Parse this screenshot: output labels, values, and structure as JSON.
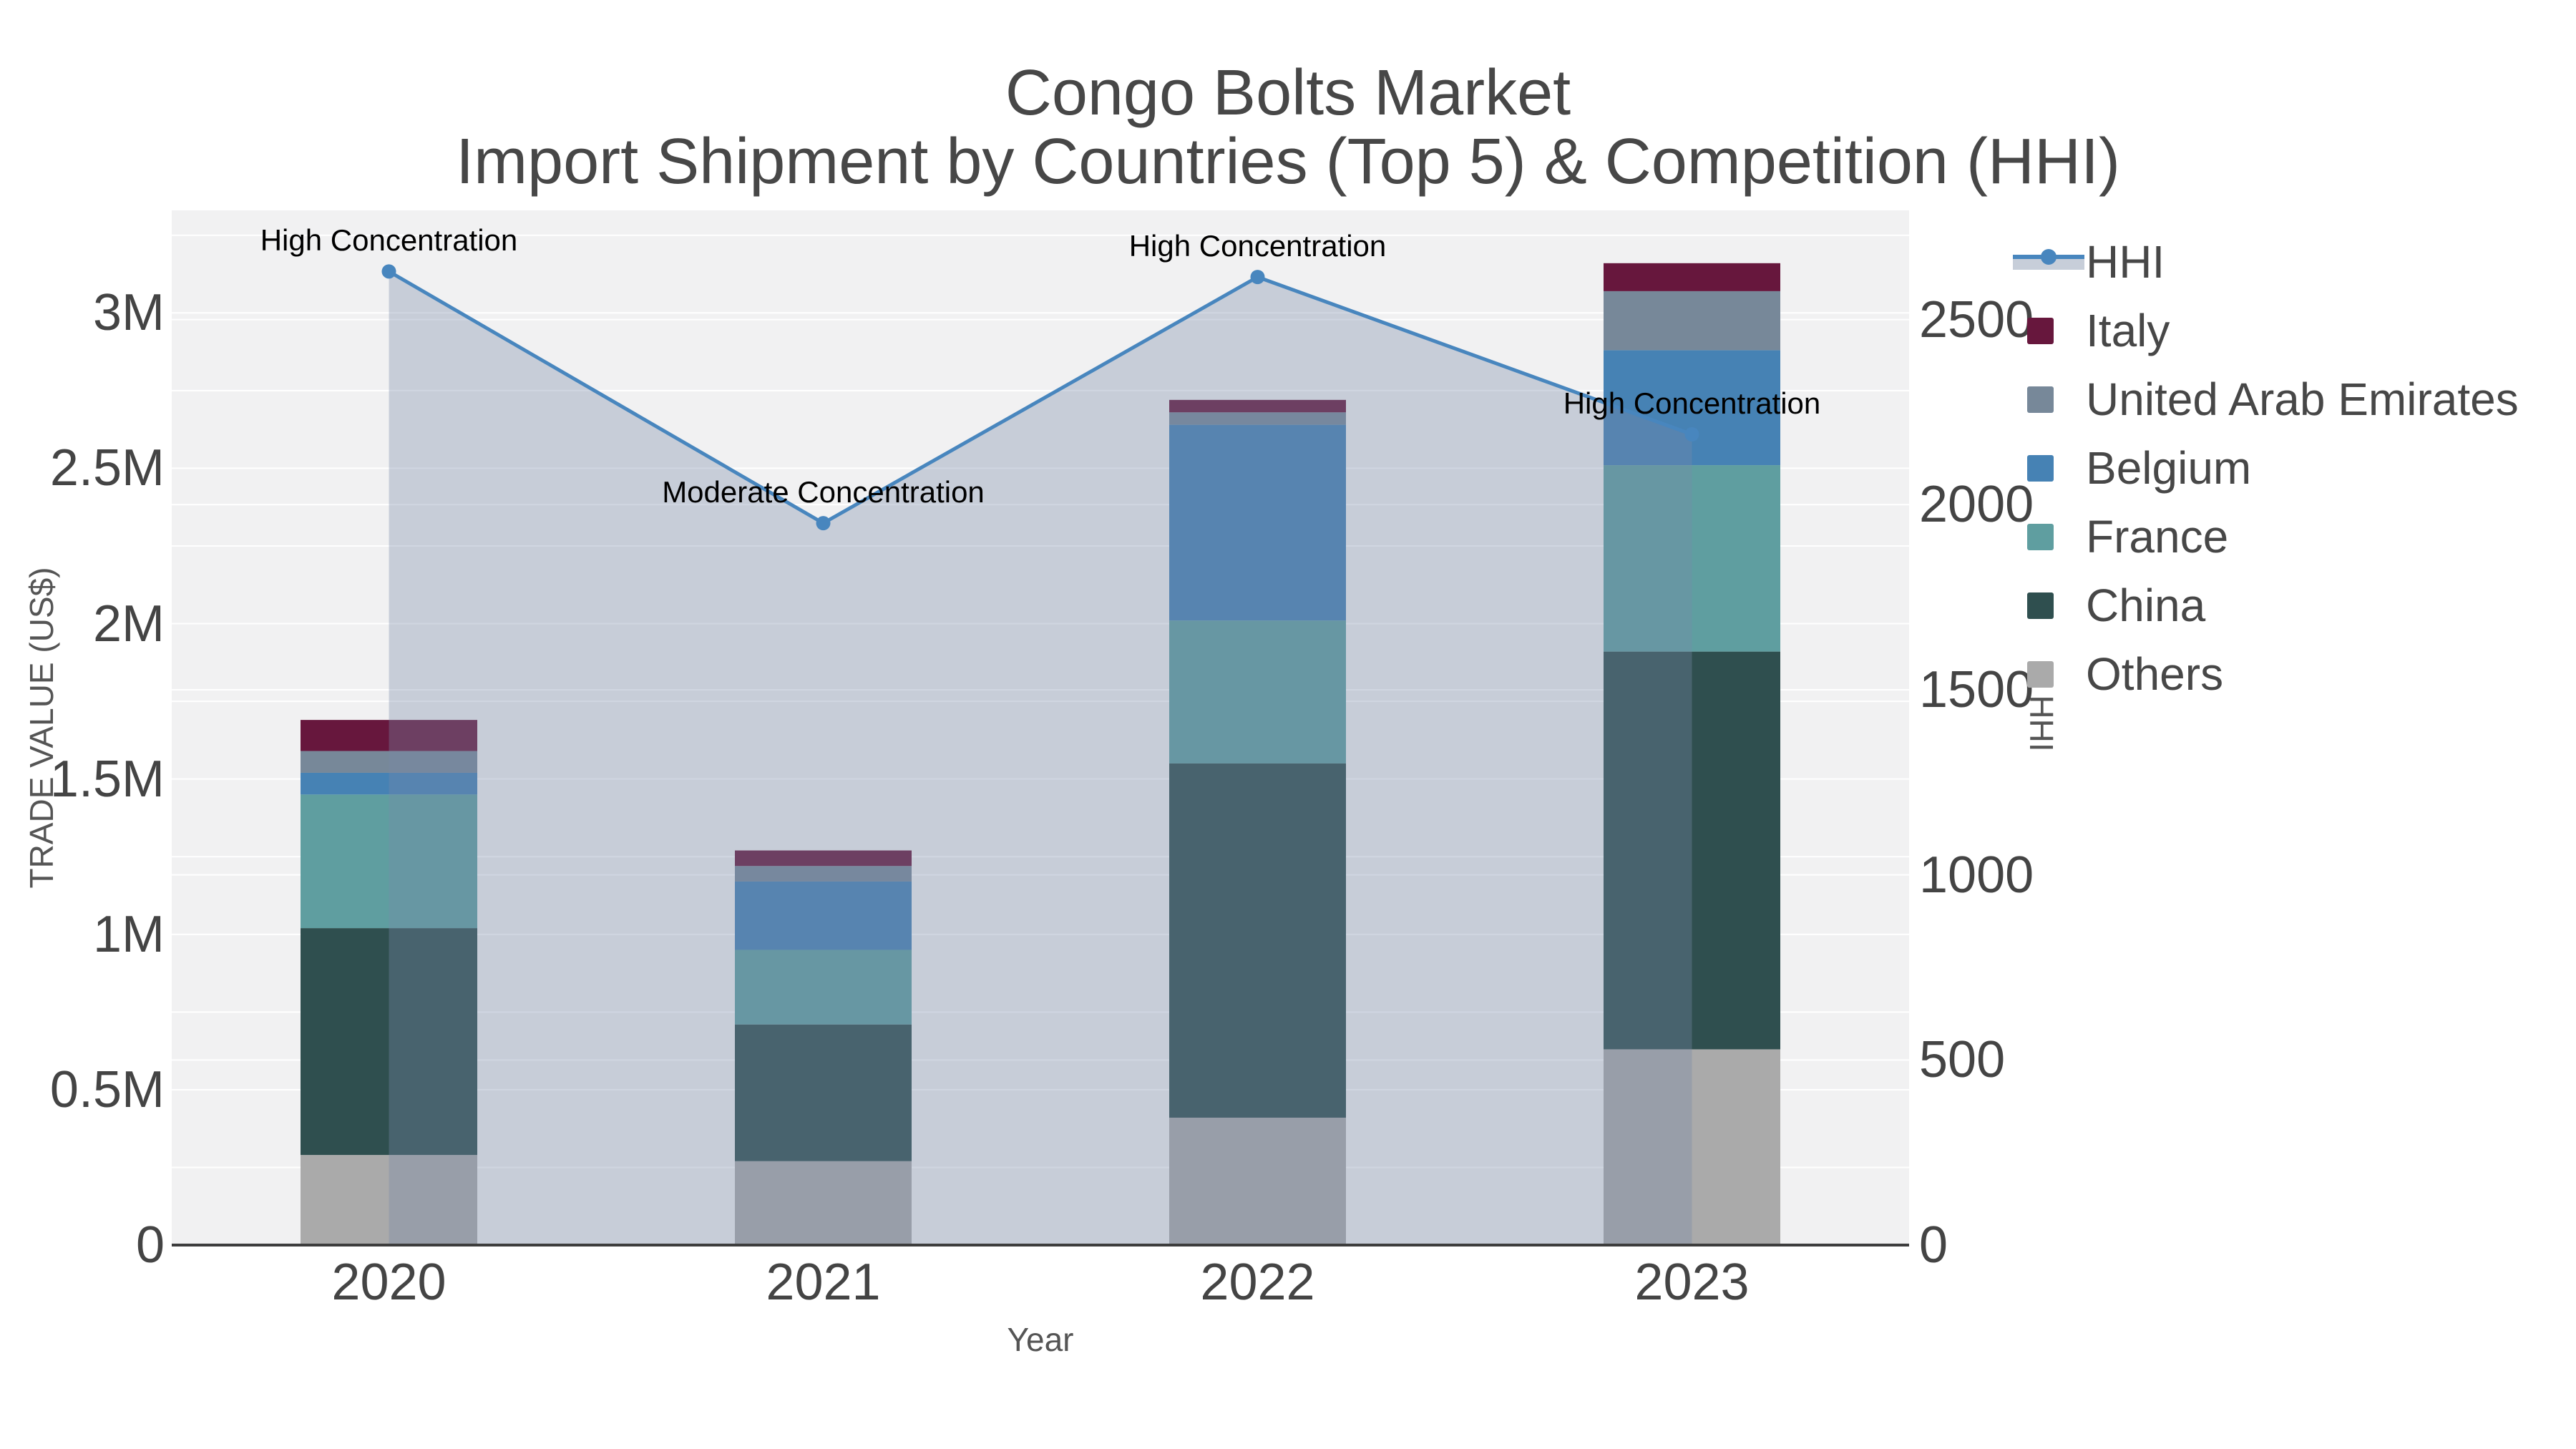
{
  "title": {
    "line1": "Congo Bolts Market",
    "line2": "Import Shipment by Countries (Top 5) & Competition (HHI)"
  },
  "axes": {
    "x": {
      "title": "Year",
      "categories": [
        "2020",
        "2021",
        "2022",
        "2023"
      ]
    },
    "y_left": {
      "title": "TRADE VALUE (US$)",
      "max": 3330000,
      "ticks": [
        {
          "label": "0",
          "value": 0
        },
        {
          "label": "0.5M",
          "value": 500000
        },
        {
          "label": "1M",
          "value": 1000000
        },
        {
          "label": "1.5M",
          "value": 1500000
        },
        {
          "label": "2M",
          "value": 2000000
        },
        {
          "label": "2.5M",
          "value": 2500000
        },
        {
          "label": "3M",
          "value": 3000000
        }
      ]
    },
    "y_right": {
      "title": "HHI",
      "max": 2795,
      "ticks": [
        {
          "label": "0",
          "value": 0
        },
        {
          "label": "500",
          "value": 500
        },
        {
          "label": "1000",
          "value": 1000
        },
        {
          "label": "1500",
          "value": 1500
        },
        {
          "label": "2000",
          "value": 2000
        },
        {
          "label": "2500",
          "value": 2500
        }
      ]
    }
  },
  "chart_data": {
    "type": "bar",
    "stacked": true,
    "categories": [
      "2020",
      "2021",
      "2022",
      "2023"
    ],
    "series": [
      {
        "name": "Others",
        "color": "#aaaaaa",
        "values": [
          290000,
          270000,
          410000,
          630000
        ]
      },
      {
        "name": "China",
        "color": "#2f4f4f",
        "values": [
          730000,
          440000,
          1140000,
          1280000
        ]
      },
      {
        "name": "France",
        "color": "#5f9ea0",
        "values": [
          430000,
          240000,
          460000,
          600000
        ]
      },
      {
        "name": "Belgium",
        "color": "#4682b4",
        "values": [
          70000,
          220000,
          630000,
          370000
        ]
      },
      {
        "name": "United Arab Emirates",
        "color": "#778899",
        "values": [
          70000,
          50000,
          40000,
          190000
        ]
      },
      {
        "name": "Italy",
        "color": "#67173d",
        "values": [
          100000,
          50000,
          40000,
          90000
        ]
      }
    ],
    "line_series": {
      "name": "HHI",
      "color": "#4886be",
      "area_fill": "rgba(119,138,168,0.35)",
      "values": [
        2630,
        1950,
        2615,
        2190
      ]
    },
    "annotations": [
      {
        "x_index": 0,
        "text": "High Concentration"
      },
      {
        "x_index": 1,
        "text": "Moderate Concentration"
      },
      {
        "x_index": 2,
        "text": "High Concentration"
      },
      {
        "x_index": 3,
        "text": "High Concentration"
      }
    ],
    "legend_order": [
      "HHI",
      "Italy",
      "United Arab Emirates",
      "Belgium",
      "France",
      "China",
      "Others"
    ],
    "ylabel": "TRADE VALUE (US$)",
    "ylabel_right": "HHI",
    "xlabel": "Year",
    "legend_position": "right",
    "grid": true
  },
  "style": {
    "plot_bg": "#f1f1f2",
    "grid_color": "#ffffff",
    "axis_line_color": "#3d3d3d",
    "tick_color": "#444444",
    "title_color": "#474747",
    "axis_title_color": "#555555",
    "annotation_color": "#000000",
    "legend_text_color": "#474747",
    "legend_band_color": "#c7ced9"
  }
}
